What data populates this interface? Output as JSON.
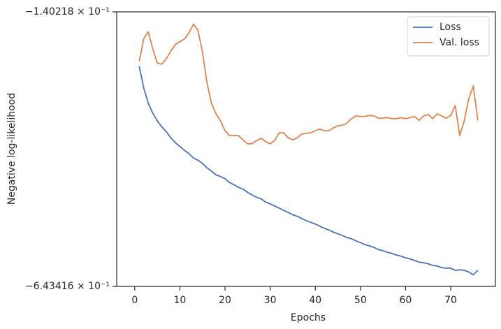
{
  "chart_data": {
    "type": "line",
    "xlabel": "Epochs",
    "ylabel": "Negative log-likelihood",
    "x": [
      1,
      2,
      3,
      4,
      5,
      6,
      7,
      8,
      9,
      10,
      11,
      12,
      13,
      14,
      15,
      16,
      17,
      18,
      19,
      20,
      21,
      22,
      23,
      24,
      25,
      26,
      27,
      28,
      29,
      30,
      31,
      32,
      33,
      34,
      35,
      36,
      37,
      38,
      39,
      40,
      41,
      42,
      43,
      44,
      45,
      46,
      47,
      48,
      49,
      50,
      51,
      52,
      53,
      54,
      55,
      56,
      57,
      58,
      59,
      60,
      61,
      62,
      63,
      64,
      65,
      66,
      67,
      68,
      69,
      70,
      71,
      72,
      73,
      74,
      75,
      76
    ],
    "series": [
      {
        "name": "Loss",
        "color": "#4c72b0",
        "values": [
          -0.24,
          -0.28,
          -0.308,
          -0.326,
          -0.34,
          -0.351,
          -0.36,
          -0.371,
          -0.38,
          -0.387,
          -0.394,
          -0.4,
          -0.408,
          -0.412,
          -0.418,
          -0.426,
          -0.432,
          -0.439,
          -0.442,
          -0.446,
          -0.453,
          -0.457,
          -0.462,
          -0.465,
          -0.471,
          -0.476,
          -0.48,
          -0.483,
          -0.489,
          -0.492,
          -0.496,
          -0.5,
          -0.504,
          -0.508,
          -0.512,
          -0.515,
          -0.519,
          -0.523,
          -0.526,
          -0.529,
          -0.533,
          -0.537,
          -0.54,
          -0.544,
          -0.547,
          -0.55,
          -0.554,
          -0.556,
          -0.56,
          -0.563,
          -0.567,
          -0.569,
          -0.572,
          -0.576,
          -0.578,
          -0.581,
          -0.583,
          -0.586,
          -0.588,
          -0.591,
          -0.593,
          -0.596,
          -0.599,
          -0.6,
          -0.602,
          -0.605,
          -0.606,
          -0.609,
          -0.61,
          -0.61,
          -0.614,
          -0.613,
          -0.614,
          -0.617,
          -0.622,
          -0.614
        ]
      },
      {
        "name": "Val. loss",
        "color": "#dd8452",
        "values": [
          -0.231,
          -0.189,
          -0.177,
          -0.208,
          -0.234,
          -0.236,
          -0.226,
          -0.212,
          -0.2,
          -0.195,
          -0.19,
          -0.179,
          -0.163,
          -0.174,
          -0.214,
          -0.27,
          -0.308,
          -0.327,
          -0.34,
          -0.358,
          -0.367,
          -0.367,
          -0.367,
          -0.375,
          -0.382,
          -0.382,
          -0.376,
          -0.372,
          -0.378,
          -0.382,
          -0.376,
          -0.362,
          -0.362,
          -0.371,
          -0.375,
          -0.371,
          -0.364,
          -0.363,
          -0.362,
          -0.358,
          -0.355,
          -0.358,
          -0.358,
          -0.353,
          -0.349,
          -0.348,
          -0.344,
          -0.336,
          -0.331,
          -0.332,
          -0.332,
          -0.33,
          -0.331,
          -0.335,
          -0.335,
          -0.334,
          -0.336,
          -0.336,
          -0.334,
          -0.336,
          -0.334,
          -0.332,
          -0.339,
          -0.331,
          -0.328,
          -0.336,
          -0.327,
          -0.331,
          -0.335,
          -0.33,
          -0.312,
          -0.367,
          -0.34,
          -0.299,
          -0.276,
          -0.339
        ]
      }
    ],
    "xlim": [
      -4,
      79.9
    ],
    "xticks": [
      0,
      10,
      20,
      30,
      40,
      50,
      60,
      70
    ],
    "ylim": [
      -0.643416,
      -0.140218
    ],
    "yticks": [
      {
        "value": -0.643416,
        "label": "−6.43416 × 10⁻¹"
      },
      {
        "value": -0.140218,
        "label": "−1.40218 × 10⁻¹"
      }
    ],
    "grid": false,
    "legend": "upper right"
  }
}
